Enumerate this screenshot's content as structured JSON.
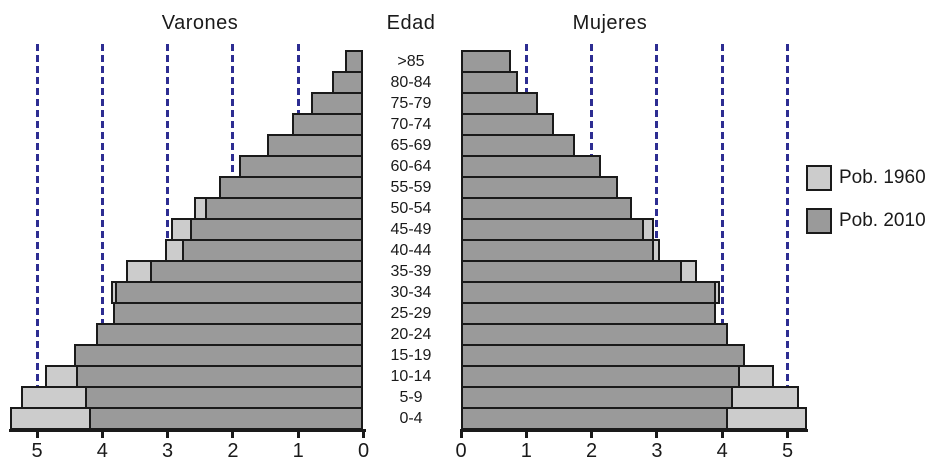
{
  "chart_data": {
    "type": "bar",
    "variant": "population-pyramid",
    "title_left": "Varones",
    "title_center": "Edad",
    "title_right": "Mujeres",
    "age_groups": [
      ">85",
      "80-84",
      "75-79",
      "70-74",
      "65-69",
      "60-64",
      "55-59",
      "50-54",
      "45-49",
      "40-44",
      "35-39",
      "30-34",
      "25-29",
      "20-24",
      "15-19",
      "10-14",
      "5-9",
      "0-4"
    ],
    "legend": [
      {
        "label": "Pob. 1960",
        "color": "#cccccc"
      },
      {
        "label": "Pob. 2010",
        "color": "#9a9a9a"
      }
    ],
    "axis": {
      "xlim": [
        0,
        5.5
      ],
      "left_tick_labels": [
        "5",
        "4",
        "3",
        "2",
        "1",
        "0"
      ],
      "right_tick_labels": [
        "0",
        "1",
        "2",
        "3",
        "4",
        "5"
      ],
      "gridlines": [
        1,
        2,
        3,
        4,
        5
      ],
      "grid_style": "dashed",
      "grid_color": "#2d2d92"
    },
    "series": [
      {
        "name": "Pob. 1960",
        "varones": [
          null,
          null,
          null,
          null,
          null,
          null,
          null,
          2.6,
          2.95,
          3.04,
          3.64,
          3.87,
          null,
          null,
          null,
          4.88,
          5.24,
          5.41
        ],
        "mujeres": [
          null,
          null,
          null,
          null,
          null,
          null,
          null,
          null,
          2.95,
          3.04,
          3.62,
          3.97,
          null,
          null,
          null,
          4.79,
          5.18,
          5.3
        ]
      },
      {
        "name": "Pob. 2010",
        "varones": [
          0.28,
          0.49,
          0.8,
          1.1,
          1.48,
          1.9,
          2.22,
          2.43,
          2.65,
          2.78,
          3.27,
          3.8,
          3.84,
          4.1,
          4.44,
          4.41,
          4.27,
          4.21
        ],
        "mujeres": [
          0.76,
          0.88,
          1.18,
          1.43,
          1.74,
          2.14,
          2.41,
          2.62,
          2.81,
          2.96,
          3.38,
          3.9,
          3.91,
          4.09,
          4.35,
          4.27,
          4.17,
          4.09
        ]
      }
    ]
  },
  "colors": {
    "bar_border": "#1a1a1a",
    "text": "#1a1a1a"
  }
}
